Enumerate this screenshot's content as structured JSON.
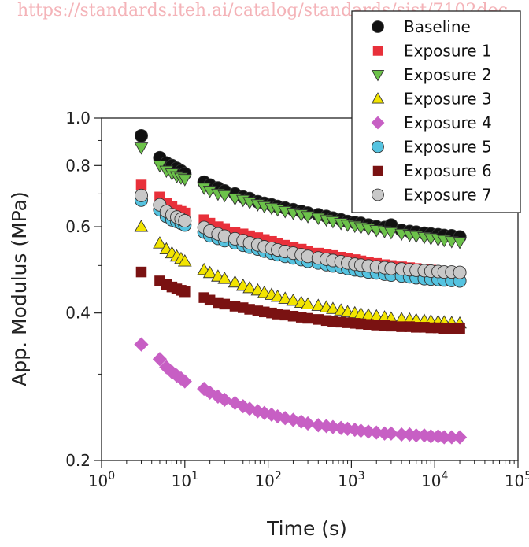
{
  "watermark": "https://standards.iteh.ai/catalog/standards/sist/7102dec",
  "chart_data": {
    "type": "scatter",
    "title": "",
    "xlabel": "Time (s)",
    "ylabel": "App. Modulus (MPa)",
    "x_scale": "log",
    "y_scale": "log",
    "xlim": [
      1,
      100000
    ],
    "ylim": [
      0.2,
      1.0
    ],
    "x_ticks": [
      1,
      10,
      100,
      1000,
      10000,
      100000
    ],
    "x_tick_bases": [
      "10",
      "10",
      "10",
      "10",
      "10",
      "10"
    ],
    "x_tick_exponents": [
      "0",
      "1",
      "2",
      "3",
      "4",
      "5"
    ],
    "y_ticks": [
      0.2,
      0.4,
      0.6,
      0.8,
      1.0
    ],
    "y_tick_labels": [
      "0.2",
      "0.4",
      "0.6",
      "0.8",
      "1.0"
    ],
    "grid": false,
    "legend_position": "top-right",
    "x": [
      3,
      5,
      6,
      7,
      8,
      9,
      10,
      17,
      20,
      25,
      30,
      40,
      50,
      60,
      75,
      90,
      110,
      130,
      160,
      200,
      250,
      300,
      400,
      500,
      600,
      750,
      900,
      1100,
      1300,
      1600,
      2000,
      2500,
      3000,
      4000,
      5000,
      6000,
      7500,
      9000,
      11000,
      13000,
      16000,
      20000
    ],
    "series": [
      {
        "name": "Baseline",
        "marker": "circle",
        "color": "#111111",
        "values": [
          0.92,
          0.83,
          0.81,
          0.8,
          0.79,
          0.78,
          0.77,
          0.74,
          0.73,
          0.72,
          0.71,
          0.7,
          0.69,
          0.685,
          0.675,
          0.67,
          0.665,
          0.66,
          0.655,
          0.65,
          0.645,
          0.64,
          0.635,
          0.63,
          0.625,
          0.62,
          0.615,
          0.612,
          0.61,
          0.605,
          0.6,
          0.598,
          0.605,
          0.59,
          0.587,
          0.585,
          0.582,
          0.58,
          0.578,
          0.576,
          0.575,
          0.572
        ]
      },
      {
        "name": "Exposure 1",
        "marker": "square",
        "color": "#e8303a",
        "values": [
          0.73,
          0.69,
          0.67,
          0.66,
          0.65,
          0.645,
          0.64,
          0.62,
          0.61,
          0.6,
          0.595,
          0.585,
          0.58,
          0.575,
          0.57,
          0.565,
          0.56,
          0.555,
          0.55,
          0.545,
          0.54,
          0.535,
          0.53,
          0.527,
          0.524,
          0.52,
          0.517,
          0.514,
          0.511,
          0.508,
          0.505,
          0.502,
          0.5,
          0.497,
          0.495,
          0.493,
          0.491,
          0.489,
          0.487,
          0.485,
          0.484,
          0.482
        ]
      },
      {
        "name": "Exposure 2",
        "marker": "triangle-down",
        "color": "#6cc24a",
        "values": [
          0.87,
          0.8,
          0.78,
          0.77,
          0.76,
          0.755,
          0.75,
          0.72,
          0.71,
          0.7,
          0.695,
          0.685,
          0.68,
          0.673,
          0.666,
          0.66,
          0.655,
          0.65,
          0.645,
          0.64,
          0.635,
          0.63,
          0.625,
          0.62,
          0.615,
          0.61,
          0.605,
          0.602,
          0.598,
          0.594,
          0.59,
          0.587,
          0.584,
          0.58,
          0.577,
          0.574,
          0.571,
          0.568,
          0.565,
          0.563,
          0.56,
          0.558
        ]
      },
      {
        "name": "Exposure 3",
        "marker": "triangle-up",
        "color": "#f2e400",
        "values": [
          0.6,
          0.555,
          0.54,
          0.53,
          0.522,
          0.516,
          0.51,
          0.49,
          0.483,
          0.475,
          0.47,
          0.462,
          0.455,
          0.45,
          0.445,
          0.44,
          0.436,
          0.432,
          0.428,
          0.424,
          0.42,
          0.417,
          0.414,
          0.411,
          0.408,
          0.405,
          0.402,
          0.4,
          0.398,
          0.396,
          0.394,
          0.392,
          0.39,
          0.389,
          0.388,
          0.387,
          0.386,
          0.385,
          0.384,
          0.383,
          0.382,
          0.381
        ]
      },
      {
        "name": "Exposure 4",
        "marker": "diamond",
        "color": "#c75fc4",
        "values": [
          0.345,
          0.322,
          0.31,
          0.303,
          0.298,
          0.294,
          0.29,
          0.28,
          0.275,
          0.27,
          0.266,
          0.262,
          0.258,
          0.255,
          0.252,
          0.25,
          0.248,
          0.246,
          0.244,
          0.242,
          0.24,
          0.238,
          0.236,
          0.235,
          0.234,
          0.233,
          0.232,
          0.231,
          0.23,
          0.229,
          0.228,
          0.227,
          0.227,
          0.226,
          0.226,
          0.225,
          0.225,
          0.224,
          0.224,
          0.223,
          0.223,
          0.223
        ]
      },
      {
        "name": "Exposure 5",
        "marker": "circle",
        "color": "#55c3e0",
        "values": [
          0.68,
          0.65,
          0.63,
          0.62,
          0.615,
          0.61,
          0.605,
          0.585,
          0.575,
          0.568,
          0.562,
          0.556,
          0.55,
          0.545,
          0.54,
          0.535,
          0.53,
          0.526,
          0.522,
          0.518,
          0.514,
          0.51,
          0.506,
          0.502,
          0.499,
          0.496,
          0.493,
          0.49,
          0.488,
          0.485,
          0.483,
          0.48,
          0.478,
          0.476,
          0.474,
          0.472,
          0.47,
          0.469,
          0.468,
          0.467,
          0.466,
          0.465
        ]
      },
      {
        "name": "Exposure 6",
        "marker": "square",
        "color": "#7a1212",
        "values": [
          0.485,
          0.465,
          0.457,
          0.452,
          0.448,
          0.445,
          0.442,
          0.43,
          0.425,
          0.42,
          0.417,
          0.413,
          0.41,
          0.407,
          0.404,
          0.402,
          0.4,
          0.398,
          0.396,
          0.394,
          0.392,
          0.39,
          0.388,
          0.386,
          0.384,
          0.383,
          0.382,
          0.381,
          0.38,
          0.379,
          0.378,
          0.377,
          0.376,
          0.375,
          0.375,
          0.374,
          0.374,
          0.373,
          0.373,
          0.372,
          0.372,
          0.372
        ]
      },
      {
        "name": "Exposure 7",
        "marker": "circle",
        "color": "#c8c8c8",
        "values": [
          0.695,
          0.665,
          0.645,
          0.635,
          0.628,
          0.622,
          0.617,
          0.598,
          0.588,
          0.58,
          0.574,
          0.567,
          0.562,
          0.556,
          0.551,
          0.546,
          0.542,
          0.538,
          0.534,
          0.53,
          0.526,
          0.522,
          0.518,
          0.515,
          0.512,
          0.509,
          0.506,
          0.503,
          0.501,
          0.499,
          0.497,
          0.495,
          0.493,
          0.492,
          0.49,
          0.489,
          0.488,
          0.487,
          0.486,
          0.485,
          0.485,
          0.484
        ]
      }
    ]
  }
}
